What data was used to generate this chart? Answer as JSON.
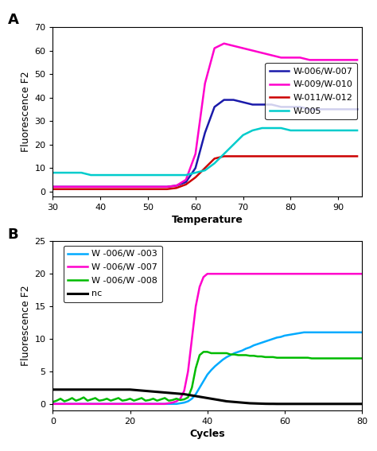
{
  "panel_A": {
    "xlabel": "Temperature",
    "ylabel": "Fluorescence F2",
    "xlim": [
      30,
      95
    ],
    "ylim": [
      -2,
      70
    ],
    "yticks": [
      0,
      10,
      20,
      30,
      40,
      50,
      60,
      70
    ],
    "xticks": [
      30,
      40,
      50,
      60,
      70,
      80,
      90
    ],
    "series": [
      {
        "label": "W-006/W-007",
        "color": "#1a1aaa",
        "linewidth": 1.8,
        "x": [
          30,
          32,
          34,
          36,
          38,
          40,
          42,
          44,
          46,
          48,
          50,
          52,
          54,
          56,
          58,
          60,
          62,
          64,
          66,
          68,
          70,
          72,
          74,
          76,
          78,
          80,
          82,
          84,
          86,
          88,
          90,
          92,
          94
        ],
        "y": [
          2,
          2,
          2,
          2,
          2,
          2,
          2,
          2,
          2,
          2,
          2,
          2,
          2,
          2.5,
          4,
          10,
          25,
          36,
          39,
          39,
          38,
          37,
          37,
          37,
          36,
          36,
          36,
          35,
          35,
          35,
          35,
          35,
          35
        ]
      },
      {
        "label": "W-009/W-010",
        "color": "#ff00cc",
        "linewidth": 1.8,
        "x": [
          30,
          32,
          34,
          36,
          38,
          40,
          42,
          44,
          46,
          48,
          50,
          52,
          54,
          56,
          58,
          60,
          62,
          64,
          66,
          68,
          70,
          72,
          74,
          76,
          78,
          80,
          82,
          84,
          86,
          88,
          90,
          92,
          94
        ],
        "y": [
          2,
          2,
          2,
          2,
          2,
          2,
          2,
          2,
          2,
          2,
          2,
          2,
          2,
          2.5,
          5,
          16,
          46,
          61,
          63,
          62,
          61,
          60,
          59,
          58,
          57,
          57,
          57,
          56,
          56,
          56,
          56,
          56,
          56
        ]
      },
      {
        "label": "W-011/W-012",
        "color": "#cc0000",
        "linewidth": 1.8,
        "x": [
          30,
          32,
          34,
          36,
          38,
          40,
          42,
          44,
          46,
          48,
          50,
          52,
          54,
          56,
          58,
          60,
          62,
          64,
          66,
          68,
          70,
          72,
          74,
          76,
          78,
          80,
          82,
          84,
          86,
          88,
          90,
          92,
          94
        ],
        "y": [
          1,
          1,
          1,
          1,
          1,
          1,
          1,
          1,
          1,
          1,
          1,
          1,
          1,
          1.5,
          3,
          6,
          10,
          14,
          15,
          15,
          15,
          15,
          15,
          15,
          15,
          15,
          15,
          15,
          15,
          15,
          15,
          15,
          15
        ]
      },
      {
        "label": "W-005",
        "color": "#00cccc",
        "linewidth": 1.8,
        "x": [
          30,
          32,
          34,
          36,
          38,
          40,
          42,
          44,
          46,
          48,
          50,
          52,
          54,
          56,
          58,
          60,
          62,
          64,
          66,
          68,
          70,
          72,
          74,
          76,
          78,
          80,
          82,
          84,
          86,
          88,
          90,
          92,
          94
        ],
        "y": [
          8,
          8,
          8,
          8,
          7,
          7,
          7,
          7,
          7,
          7,
          7,
          7,
          7,
          7,
          7,
          8,
          9,
          12,
          16,
          20,
          24,
          26,
          27,
          27,
          27,
          26,
          26,
          26,
          26,
          26,
          26,
          26,
          26
        ]
      }
    ]
  },
  "panel_B": {
    "xlabel": "Cycles",
    "ylabel": "Fluorescence F2",
    "xlim": [
      0,
      80
    ],
    "ylim": [
      -1,
      25
    ],
    "yticks": [
      0,
      5,
      10,
      15,
      20,
      25
    ],
    "xticks": [
      0,
      20,
      40,
      60,
      80
    ],
    "series": [
      {
        "label": "W -006/W -003",
        "color": "#00aaff",
        "linewidth": 1.8,
        "x": [
          0,
          1,
          2,
          3,
          4,
          5,
          6,
          7,
          8,
          9,
          10,
          11,
          12,
          13,
          14,
          15,
          16,
          17,
          18,
          19,
          20,
          21,
          22,
          23,
          24,
          25,
          26,
          27,
          28,
          29,
          30,
          31,
          32,
          33,
          34,
          35,
          36,
          37,
          38,
          39,
          40,
          41,
          42,
          43,
          44,
          45,
          46,
          47,
          48,
          49,
          50,
          51,
          52,
          53,
          54,
          55,
          56,
          57,
          58,
          59,
          60,
          61,
          62,
          63,
          64,
          65,
          66,
          67,
          68,
          69,
          70,
          71,
          72,
          73,
          74,
          75,
          76,
          77,
          78,
          79,
          80
        ],
        "y": [
          0,
          0,
          0,
          0,
          0,
          0,
          0,
          0,
          0,
          0,
          0,
          0,
          0,
          0,
          0,
          0,
          0,
          0,
          0,
          0,
          0,
          0,
          0,
          0,
          0,
          0,
          0,
          0,
          0,
          0,
          0,
          0,
          0,
          0.1,
          0.2,
          0.4,
          0.8,
          1.5,
          2.5,
          3.5,
          4.5,
          5.2,
          5.8,
          6.3,
          6.8,
          7.2,
          7.5,
          7.8,
          8.0,
          8.2,
          8.5,
          8.7,
          9.0,
          9.2,
          9.4,
          9.6,
          9.8,
          10.0,
          10.2,
          10.3,
          10.5,
          10.6,
          10.7,
          10.8,
          10.9,
          11.0,
          11.0,
          11.0,
          11.0,
          11.0,
          11.0,
          11.0,
          11.0,
          11.0,
          11.0,
          11.0,
          11.0,
          11.0,
          11.0,
          11.0,
          11.0
        ]
      },
      {
        "label": "W -006/W -007",
        "color": "#ff00cc",
        "linewidth": 1.8,
        "x": [
          0,
          1,
          2,
          3,
          4,
          5,
          6,
          7,
          8,
          9,
          10,
          11,
          12,
          13,
          14,
          15,
          16,
          17,
          18,
          19,
          20,
          21,
          22,
          23,
          24,
          25,
          26,
          27,
          28,
          29,
          30,
          31,
          32,
          33,
          34,
          35,
          36,
          37,
          38,
          39,
          40,
          41,
          42,
          43,
          44,
          45,
          46,
          47,
          48,
          49,
          50,
          51,
          52,
          53,
          54,
          55,
          56,
          57,
          58,
          59,
          60,
          61,
          62,
          63,
          64,
          65,
          66,
          67,
          68,
          69,
          70,
          71,
          72,
          73,
          74,
          75,
          76,
          77,
          78,
          79,
          80
        ],
        "y": [
          0,
          0,
          0,
          0,
          0,
          0,
          0,
          0,
          0,
          0,
          0,
          0,
          0,
          0,
          0,
          0,
          0,
          0,
          0,
          0,
          0,
          0,
          0,
          0,
          0,
          0,
          0,
          0,
          0,
          0,
          0.1,
          0.2,
          0.4,
          0.8,
          2,
          5,
          10,
          15,
          18,
          19.5,
          20,
          20,
          20,
          20,
          20,
          20,
          20,
          20,
          20,
          20,
          20,
          20,
          20,
          20,
          20,
          20,
          20,
          20,
          20,
          20,
          20,
          20,
          20,
          20,
          20,
          20,
          20,
          20,
          20,
          20,
          20,
          20,
          20,
          20,
          20,
          20,
          20,
          20,
          20,
          20,
          20
        ]
      },
      {
        "label": "W -006/W -008",
        "color": "#00bb00",
        "linewidth": 1.8,
        "x": [
          0,
          1,
          2,
          3,
          4,
          5,
          6,
          7,
          8,
          9,
          10,
          11,
          12,
          13,
          14,
          15,
          16,
          17,
          18,
          19,
          20,
          21,
          22,
          23,
          24,
          25,
          26,
          27,
          28,
          29,
          30,
          31,
          32,
          33,
          34,
          35,
          36,
          37,
          38,
          39,
          40,
          41,
          42,
          43,
          44,
          45,
          46,
          47,
          48,
          49,
          50,
          51,
          52,
          53,
          54,
          55,
          56,
          57,
          58,
          59,
          60,
          61,
          62,
          63,
          64,
          65,
          66,
          67,
          68,
          69,
          70,
          71,
          72,
          73,
          74,
          75,
          76,
          77,
          78,
          79,
          80
        ],
        "y": [
          0.3,
          0.5,
          0.8,
          0.4,
          0.6,
          0.9,
          0.5,
          0.7,
          1.0,
          0.5,
          0.7,
          0.9,
          0.5,
          0.6,
          0.8,
          0.5,
          0.7,
          0.9,
          0.5,
          0.6,
          0.8,
          0.5,
          0.7,
          0.9,
          0.5,
          0.6,
          0.8,
          0.5,
          0.7,
          0.9,
          0.5,
          0.6,
          0.8,
          0.6,
          0.7,
          1.0,
          2.5,
          5.5,
          7.5,
          8.0,
          8.0,
          7.8,
          7.8,
          7.8,
          7.8,
          7.8,
          7.6,
          7.6,
          7.5,
          7.5,
          7.5,
          7.4,
          7.4,
          7.3,
          7.3,
          7.2,
          7.2,
          7.2,
          7.1,
          7.1,
          7.1,
          7.1,
          7.1,
          7.1,
          7.1,
          7.1,
          7.1,
          7.0,
          7.0,
          7.0,
          7.0,
          7.0,
          7.0,
          7.0,
          7.0,
          7.0,
          7.0,
          7.0,
          7.0,
          7.0,
          7.0
        ]
      },
      {
        "label": "nc",
        "color": "#000000",
        "linewidth": 2.2,
        "x": [
          0,
          1,
          2,
          3,
          4,
          5,
          6,
          7,
          8,
          9,
          10,
          11,
          12,
          13,
          14,
          15,
          16,
          17,
          18,
          19,
          20,
          21,
          22,
          23,
          24,
          25,
          26,
          27,
          28,
          29,
          30,
          31,
          32,
          33,
          34,
          35,
          36,
          37,
          38,
          39,
          40,
          41,
          42,
          43,
          44,
          45,
          46,
          47,
          48,
          49,
          50,
          51,
          52,
          53,
          54,
          55,
          56,
          57,
          58,
          59,
          60,
          61,
          62,
          63,
          64,
          65,
          66,
          67,
          68,
          69,
          70,
          71,
          72,
          73,
          74,
          75,
          76,
          77,
          78,
          79,
          80
        ],
        "y": [
          2.2,
          2.2,
          2.2,
          2.2,
          2.2,
          2.2,
          2.2,
          2.2,
          2.2,
          2.2,
          2.2,
          2.2,
          2.2,
          2.2,
          2.2,
          2.2,
          2.2,
          2.2,
          2.2,
          2.2,
          2.2,
          2.15,
          2.1,
          2.05,
          2.0,
          1.95,
          1.9,
          1.85,
          1.8,
          1.75,
          1.7,
          1.65,
          1.6,
          1.55,
          1.5,
          1.4,
          1.3,
          1.2,
          1.1,
          1.0,
          0.9,
          0.8,
          0.7,
          0.6,
          0.5,
          0.4,
          0.35,
          0.3,
          0.25,
          0.2,
          0.15,
          0.1,
          0.08,
          0.06,
          0.04,
          0.02,
          0.01,
          0.01,
          0.0,
          0.0,
          0.0,
          0.0,
          0.0,
          0.0,
          0.0,
          0.0,
          0.0,
          0.0,
          0.0,
          0.0,
          0.0,
          0.0,
          0.0,
          0.0,
          0.0,
          0.0,
          0.0,
          0.0,
          0.0,
          0.0,
          0.0
        ]
      }
    ]
  },
  "bg_color": "#ffffff",
  "panel_label_fontsize": 13,
  "axis_label_fontsize": 9,
  "tick_fontsize": 8,
  "legend_fontsize": 8
}
